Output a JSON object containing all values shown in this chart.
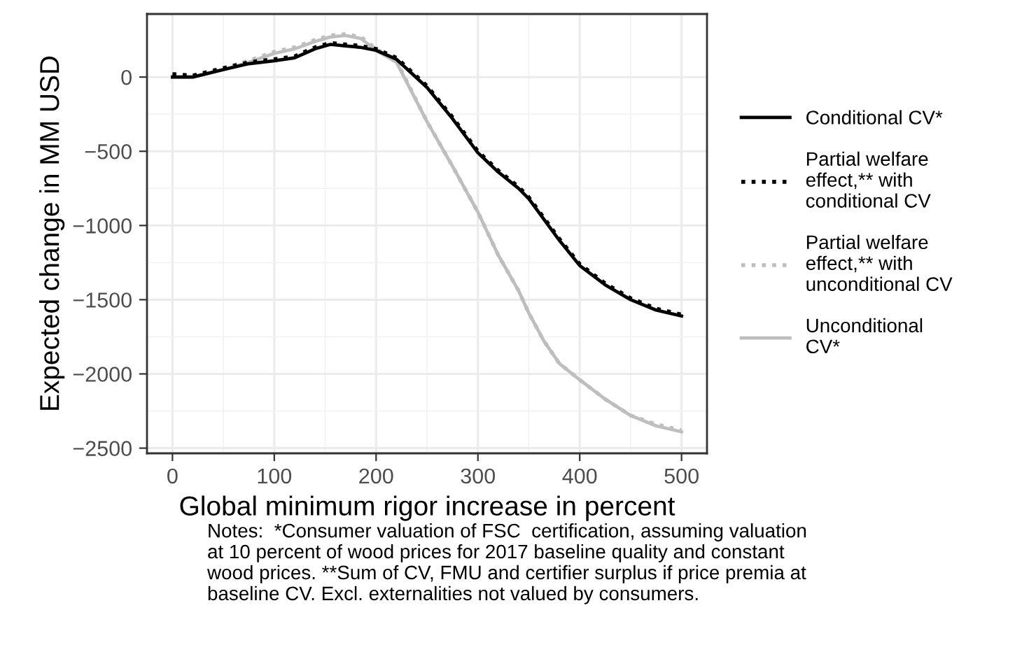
{
  "chart_data": {
    "type": "line",
    "xlabel": "Global minimum rigor increase in percent",
    "ylabel": "Expected change in MM USD",
    "xlim": [
      -25,
      525
    ],
    "xticks": [
      0,
      100,
      200,
      300,
      400,
      500
    ],
    "ylim": [
      -2535,
      425
    ],
    "yticks": [
      -2500,
      -2000,
      -1500,
      -1000,
      -500,
      0
    ],
    "grid": true,
    "legend": "right",
    "x": [
      0,
      20,
      50,
      75,
      100,
      120,
      140,
      155,
      170,
      185,
      200,
      220,
      250,
      275,
      300,
      320,
      340,
      350,
      365,
      380,
      400,
      425,
      450,
      475,
      500
    ],
    "series": [
      {
        "name": "Conditional CV*",
        "color": "#000000",
        "line_style": "solid",
        "values": [
          0,
          0,
          50,
          90,
          110,
          130,
          190,
          220,
          210,
          200,
          180,
          120,
          -70,
          -280,
          -510,
          -640,
          -750,
          -820,
          -960,
          -1100,
          -1270,
          -1400,
          -1500,
          -1570,
          -1610
        ]
      },
      {
        "name": "Partial welfare effect,** with conditional CV",
        "color": "#000000",
        "line_style": "dotted",
        "values": [
          20,
          10,
          60,
          100,
          120,
          140,
          200,
          230,
          220,
          210,
          190,
          130,
          -60,
          -270,
          -500,
          -630,
          -740,
          -810,
          -950,
          -1090,
          -1260,
          -1390,
          -1490,
          -1560,
          -1600
        ]
      },
      {
        "name": "Partial welfare effect,** with unconditional CV",
        "color": "#bebebe",
        "line_style": "dotted",
        "values": [
          20,
          10,
          60,
          110,
          170,
          200,
          250,
          280,
          290,
          270,
          190,
          110,
          -300,
          -600,
          -910,
          -1200,
          -1440,
          -1590,
          -1780,
          -1930,
          -2040,
          -2170,
          -2280,
          -2340,
          -2380
        ]
      },
      {
        "name": "Unconditional CV*",
        "color": "#bebebe",
        "line_style": "solid",
        "values": [
          0,
          0,
          50,
          100,
          160,
          190,
          240,
          270,
          280,
          260,
          180,
          100,
          -300,
          -600,
          -910,
          -1200,
          -1440,
          -1590,
          -1780,
          -1930,
          -2040,
          -2170,
          -2280,
          -2350,
          -2390
        ]
      }
    ],
    "annotations": [
      "Notes:  *Consumer valuation of FSC  certification, assuming valuation at 10 percent of wood prices for 2017 baseline quality and constant wood prices. **Sum of CV, FMU and certifier surplus if price premia at baseline CV. Excl. externalities not valued by consumers."
    ]
  }
}
